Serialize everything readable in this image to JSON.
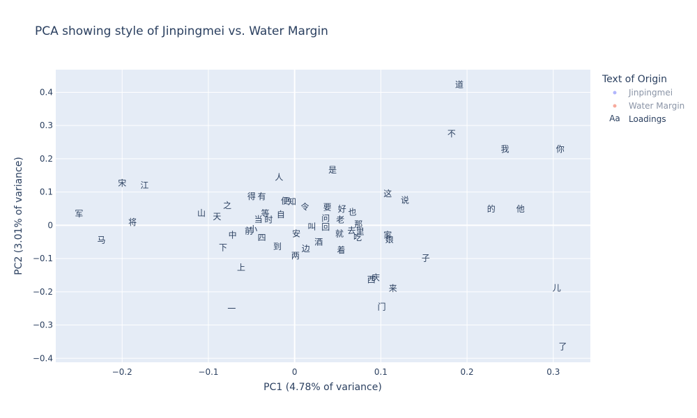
{
  "chart_data": {
    "type": "scatter",
    "title": "PCA showing style of Jinpingmei vs. Water Margin",
    "xlabel": "PC1 (4.78% of variance)",
    "ylabel": "PC2 (3.01% of variance)",
    "xlim": [
      -0.277,
      0.343
    ],
    "ylim": [
      -0.412,
      0.468
    ],
    "xticks": [
      -0.2,
      -0.1,
      0,
      0.1,
      0.2,
      0.3
    ],
    "xtick_labels": [
      "−0.2",
      "−0.1",
      "0",
      "0.1",
      "0.2",
      "0.3"
    ],
    "yticks": [
      -0.4,
      -0.3,
      -0.2,
      -0.1,
      0,
      0.1,
      0.2,
      0.3,
      0.4
    ],
    "ytick_labels": [
      "−0.4",
      "−0.3",
      "−0.2",
      "−0.1",
      "0",
      "0.1",
      "0.2",
      "0.3",
      "0.4"
    ],
    "grid": true,
    "legend": {
      "title": "Text of Origin",
      "placement": "right",
      "entries": [
        {
          "name": "Jinpingmei",
          "symbol": "dot",
          "color": "#636efa",
          "visible": false
        },
        {
          "name": "Water Margin",
          "symbol": "dot",
          "color": "#ef553b",
          "visible": false
        },
        {
          "name": "Loadings",
          "symbol": "Aa",
          "color": "#2a3f5f",
          "visible": true
        }
      ]
    },
    "series": [
      {
        "name": "Loadings",
        "mode": "text",
        "points": [
          {
            "label": "道",
            "x": 0.191,
            "y": 0.423
          },
          {
            "label": "不",
            "x": 0.182,
            "y": 0.275
          },
          {
            "label": "我",
            "x": 0.244,
            "y": 0.229
          },
          {
            "label": "你",
            "x": 0.308,
            "y": 0.229
          },
          {
            "label": "是",
            "x": 0.044,
            "y": 0.166
          },
          {
            "label": "人",
            "x": -0.018,
            "y": 0.144
          },
          {
            "label": "宋",
            "x": -0.2,
            "y": 0.126
          },
          {
            "label": "江",
            "x": -0.174,
            "y": 0.12
          },
          {
            "label": "这",
            "x": 0.108,
            "y": 0.095
          },
          {
            "label": "得",
            "x": -0.05,
            "y": 0.087
          },
          {
            "label": "有",
            "x": -0.038,
            "y": 0.087
          },
          {
            "label": "说",
            "x": 0.128,
            "y": 0.075
          },
          {
            "label": "便",
            "x": -0.011,
            "y": 0.073
          },
          {
            "label": "知",
            "x": -0.003,
            "y": 0.071
          },
          {
            "label": "之",
            "x": -0.078,
            "y": 0.059
          },
          {
            "label": "令",
            "x": 0.012,
            "y": 0.055
          },
          {
            "label": "要",
            "x": 0.038,
            "y": 0.054
          },
          {
            "label": "好",
            "x": 0.055,
            "y": 0.049
          },
          {
            "label": "的",
            "x": 0.228,
            "y": 0.049
          },
          {
            "label": "他",
            "x": 0.262,
            "y": 0.049
          },
          {
            "label": "也",
            "x": 0.067,
            "y": 0.04
          },
          {
            "label": "山",
            "x": -0.108,
            "y": 0.036
          },
          {
            "label": "军",
            "x": -0.25,
            "y": 0.034
          },
          {
            "label": "等",
            "x": -0.034,
            "y": 0.035
          },
          {
            "label": "天",
            "x": -0.09,
            "y": 0.026
          },
          {
            "label": "自",
            "x": -0.016,
            "y": 0.032
          },
          {
            "label": "问",
            "x": 0.036,
            "y": 0.021
          },
          {
            "label": "老",
            "x": 0.053,
            "y": 0.016
          },
          {
            "label": "当",
            "x": -0.042,
            "y": 0.018
          },
          {
            "label": "时",
            "x": -0.03,
            "y": 0.017
          },
          {
            "label": "将",
            "x": -0.188,
            "y": 0.009
          },
          {
            "label": "那",
            "x": 0.074,
            "y": 0.003
          },
          {
            "label": "叫",
            "x": 0.02,
            "y": -0.004
          },
          {
            "label": "就",
            "x": 0.052,
            "y": -0.025
          },
          {
            "label": "去",
            "x": 0.066,
            "y": -0.016
          },
          {
            "label": "里",
            "x": 0.076,
            "y": -0.019
          },
          {
            "label": "中",
            "x": -0.072,
            "y": -0.03
          },
          {
            "label": "家",
            "x": 0.108,
            "y": -0.03
          },
          {
            "label": "安",
            "x": 0.002,
            "y": -0.025
          },
          {
            "label": "吃",
            "x": 0.073,
            "y": -0.037
          },
          {
            "label": "娘",
            "x": 0.11,
            "y": -0.043
          },
          {
            "label": "四",
            "x": -0.038,
            "y": -0.037
          },
          {
            "label": "马",
            "x": -0.224,
            "y": -0.044
          },
          {
            "label": "酒",
            "x": 0.028,
            "y": -0.051
          },
          {
            "label": "到",
            "x": -0.02,
            "y": -0.064
          },
          {
            "label": "下",
            "x": -0.083,
            "y": -0.067
          },
          {
            "label": "边",
            "x": 0.013,
            "y": -0.07
          },
          {
            "label": "着",
            "x": 0.054,
            "y": -0.075
          },
          {
            "label": "两",
            "x": 0.001,
            "y": -0.091
          },
          {
            "label": "子",
            "x": 0.152,
            "y": -0.099
          },
          {
            "label": "上",
            "x": -0.062,
            "y": -0.127
          },
          {
            "label": "庆",
            "x": 0.094,
            "y": -0.157
          },
          {
            "label": "西",
            "x": 0.089,
            "y": -0.164
          },
          {
            "label": "来",
            "x": 0.114,
            "y": -0.19
          },
          {
            "label": "儿",
            "x": 0.304,
            "y": -0.189
          },
          {
            "label": "门",
            "x": 0.101,
            "y": -0.245
          },
          {
            "label": "一",
            "x": -0.073,
            "y": -0.251
          },
          {
            "label": "了",
            "x": 0.311,
            "y": -0.365
          },
          {
            "label": "前",
            "x": -0.053,
            "y": -0.017
          },
          {
            "label": "小",
            "x": -0.048,
            "y": -0.012
          },
          {
            "label": "回",
            "x": 0.036,
            "y": -0.005
          }
        ]
      }
    ]
  }
}
